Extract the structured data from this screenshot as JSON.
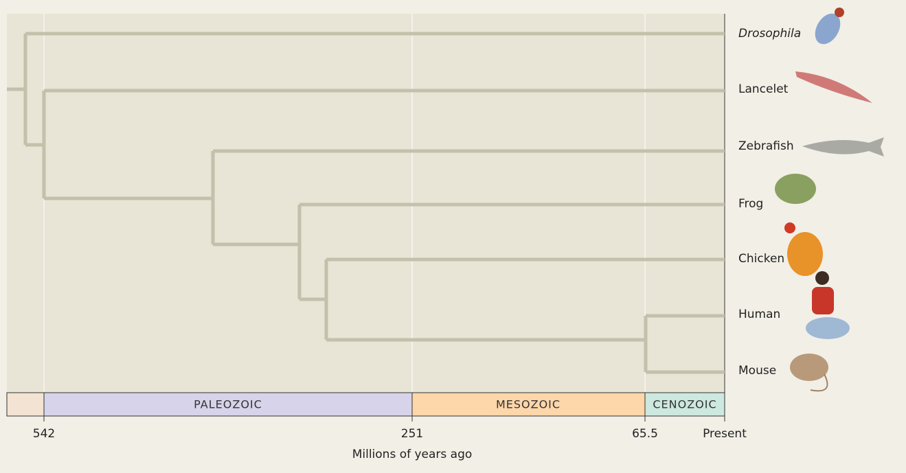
{
  "taxa": [
    "Drosophila",
    "Lancelet",
    "Zebrafish",
    "Frog",
    "Chicken",
    "Human",
    "Mouse"
  ],
  "eras": [
    "PALEOZOIC",
    "MESOZOIC",
    "CENOZOIC"
  ],
  "time_axis": {
    "ticks": [
      "542",
      "251",
      "65.5",
      "Present"
    ],
    "label": "Millions of years ago"
  }
}
